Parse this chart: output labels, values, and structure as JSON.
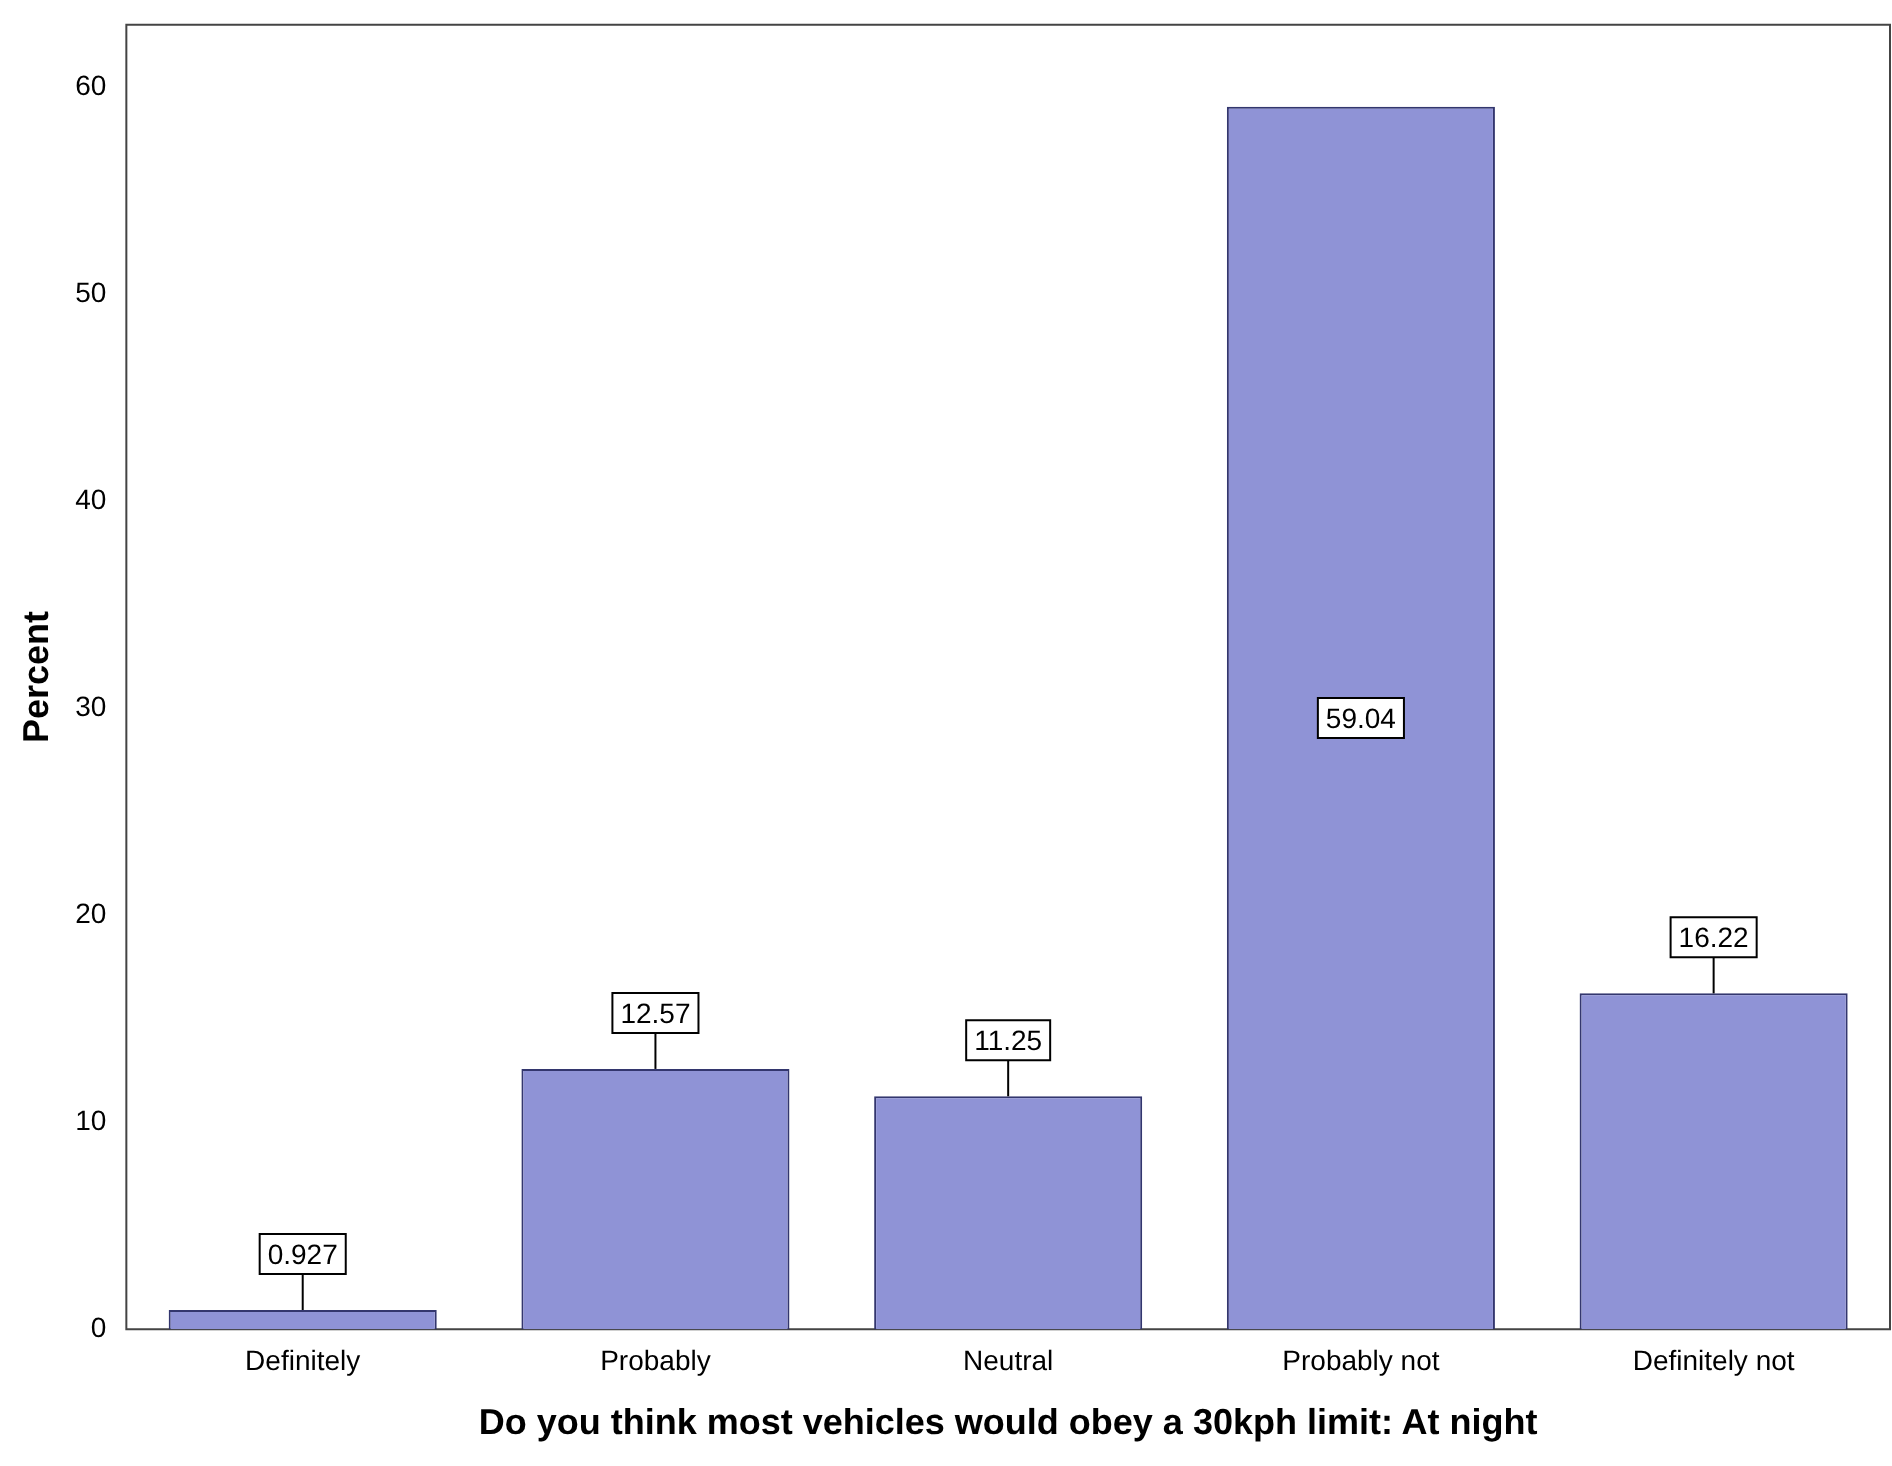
{
  "chart_data": {
    "type": "bar",
    "xlabel": "Do you think most vehicles would obey a 30kph limit: At night",
    "ylabel": "Percent",
    "categories": [
      "Definitely",
      "Probably",
      "Neutral",
      "Probably not",
      "Definitely not"
    ],
    "values": [
      0.927,
      12.57,
      11.25,
      59.04,
      16.22
    ],
    "color": "#8f93d6",
    "ylim": [
      0,
      63
    ],
    "yticks": [
      0,
      10,
      20,
      30,
      40,
      50,
      60
    ],
    "grid": false,
    "data_labels": true,
    "legend": false
  }
}
